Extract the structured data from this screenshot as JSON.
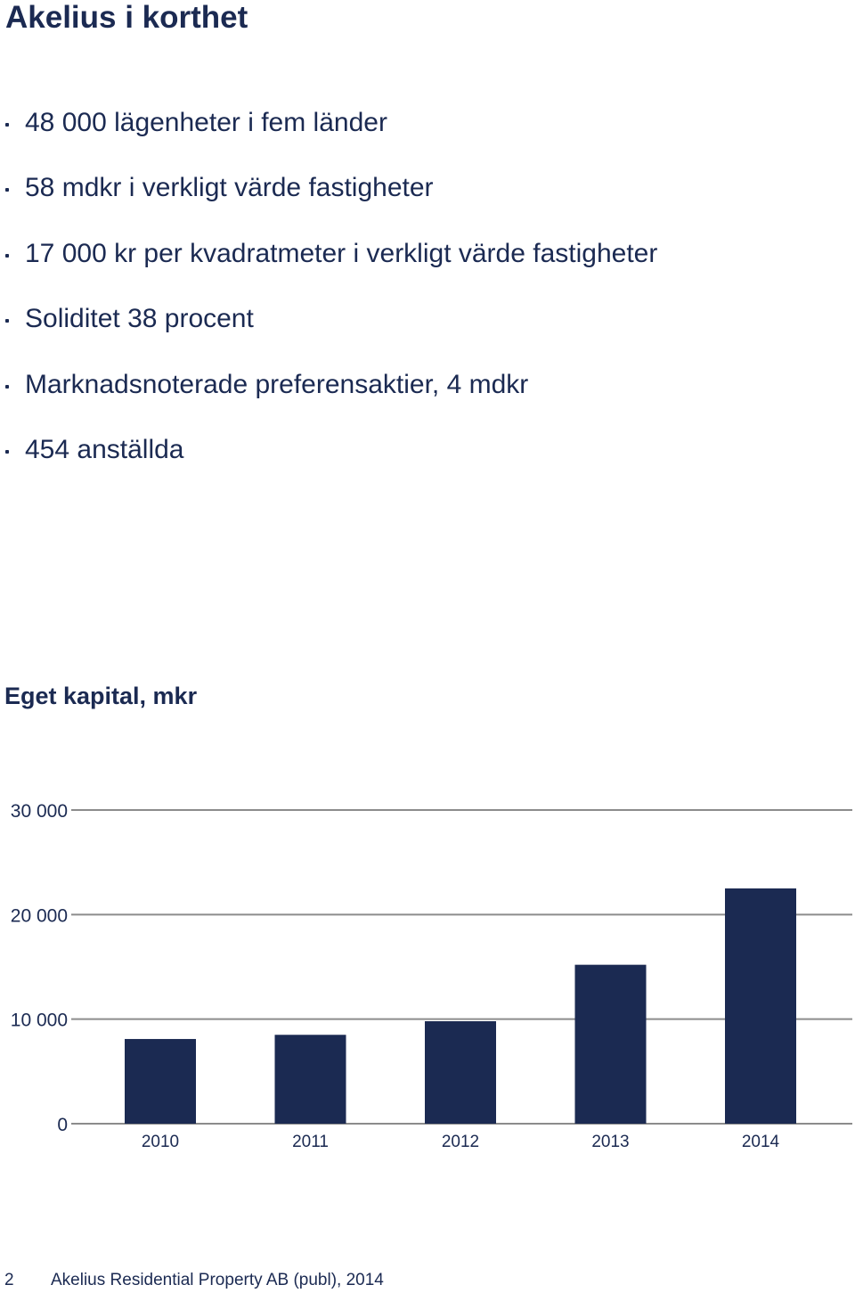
{
  "page": {
    "title": "Akelius i korthet"
  },
  "facts": [
    "48 000 lägenheter i fem länder",
    "58 mdkr i verkligt värde fastigheter",
    "17 000 kr per kvadratmeter i verkligt värde fastigheter",
    "Soliditet 38 procent",
    "Marknadsnoterade preferensaktier, 4 mdkr",
    "454 anställda"
  ],
  "chart_data": {
    "type": "bar",
    "title": "Eget kapital, mkr",
    "xlabel": "",
    "ylabel": "",
    "categories": [
      "2010",
      "2011",
      "2012",
      "2013",
      "2014"
    ],
    "values": [
      8100,
      8500,
      9800,
      15200,
      22500
    ],
    "ylim": [
      0,
      30000
    ],
    "yticks": [
      0,
      10000,
      20000,
      30000
    ],
    "ytick_labels": [
      "0",
      "10 000",
      "20 000",
      "30 000"
    ],
    "grid": true,
    "bar_color": "#1b2a52",
    "grid_color": "#8c8c8c"
  },
  "footer": {
    "page_number": "2",
    "text": "Akelius Residential Property AB (publ), 2014"
  },
  "colors": {
    "text": "#1b2a52"
  }
}
